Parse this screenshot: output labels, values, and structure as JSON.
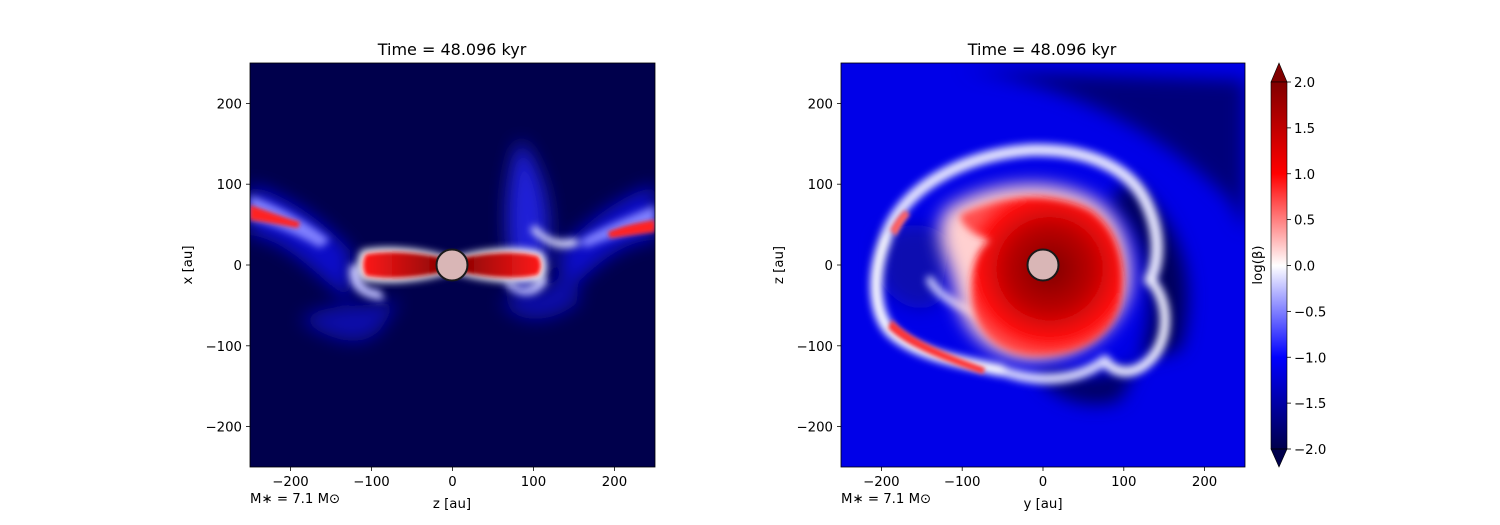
{
  "colors": {
    "background": "#ffffff",
    "field_low": "#00004c",
    "field_mid_blue": "#0000ff",
    "field_white": "#ffffff",
    "field_red": "#ff0000",
    "field_high": "#800000",
    "star_fill": "#d9b6b6",
    "star_edge": "#1a1a1a"
  },
  "chart_data": [
    {
      "type": "heatmap",
      "title": "Time = 48.096 kyr",
      "xlabel": "z [au]",
      "ylabel": "x [au]",
      "xlim": [
        -250,
        250
      ],
      "ylim": [
        -250,
        250
      ],
      "xticks": [
        -200,
        -100,
        0,
        100,
        200
      ],
      "yticks": [
        -200,
        -100,
        0,
        100,
        200
      ],
      "tick_labels_x": [
        "−200",
        "−100",
        "0",
        "100",
        "200"
      ],
      "tick_labels_y": [
        "−200",
        "−100",
        "0",
        "100",
        "200"
      ],
      "annotation": "M∗ = 7.1 M⊙",
      "star_center": [
        0,
        0
      ],
      "star_radius_au": 19,
      "grid": false,
      "description_values": "edge-on view: log(beta) high (red) in a thin equatorial band along z, low (dark blue) elsewhere"
    },
    {
      "type": "heatmap",
      "title": "Time = 48.096 kyr",
      "xlabel": "y [au]",
      "ylabel": "z [au]",
      "xlim": [
        -250,
        250
      ],
      "ylim": [
        -250,
        250
      ],
      "xticks": [
        -200,
        -100,
        0,
        100,
        200
      ],
      "yticks": [
        -200,
        -100,
        0,
        100,
        200
      ],
      "tick_labels_x": [
        "−200",
        "−100",
        "0",
        "100",
        "200"
      ],
      "tick_labels_y": [
        "−200",
        "−100",
        "0",
        "100",
        "200"
      ],
      "annotation": "M∗ = 7.1 M⊙",
      "star_center": [
        0,
        0
      ],
      "star_radius_au": 19,
      "grid": false,
      "colorbar": {
        "label": "log(β)",
        "range": [
          -2.0,
          2.0
        ],
        "ticks": [
          2.0,
          1.5,
          1.0,
          0.5,
          0.0,
          -0.5,
          -1.0,
          -1.5,
          -2.0
        ],
        "tick_labels": [
          "2.0",
          "1.5",
          "1.0",
          "0.5",
          "0.0",
          "−0.5",
          "−1.0",
          "−1.5",
          "−2.0"
        ],
        "extend": "both"
      }
    }
  ]
}
